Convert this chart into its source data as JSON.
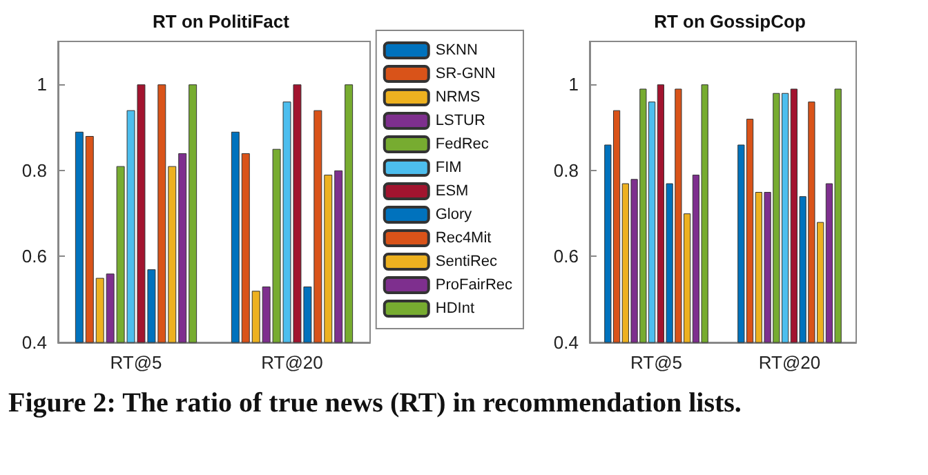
{
  "chart_data": [
    {
      "type": "bar",
      "title": "RT on PolitiFact",
      "categories": [
        "RT@5",
        "RT@20"
      ],
      "ylim": [
        0.4,
        1.1
      ],
      "yticks": [
        0.4,
        0.6,
        0.8,
        {
          "value": 1,
          "label": "1"
        }
      ],
      "grid": false,
      "legend": "right",
      "annotations": [
        "Figure 2: The ratio of true news (RT) in recommendation lists."
      ],
      "series": [
        {
          "name": "SKNN",
          "color": "#0072bd",
          "values": [
            0.89,
            0.89
          ]
        },
        {
          "name": "SR-GNN",
          "color": "#d95319",
          "values": [
            0.88,
            0.84
          ]
        },
        {
          "name": "NRMS",
          "color": "#edb120",
          "values": [
            0.55,
            0.52
          ]
        },
        {
          "name": "LSTUR",
          "color": "#7e2f8e",
          "values": [
            0.56,
            0.53
          ]
        },
        {
          "name": "FedRec",
          "color": "#77ac30",
          "values": [
            0.81,
            0.85
          ]
        },
        {
          "name": "FIM",
          "color": "#4dbeee",
          "values": [
            0.94,
            0.96
          ]
        },
        {
          "name": "ESM",
          "color": "#a2142f",
          "values": [
            1.0,
            1.0
          ]
        },
        {
          "name": "Glory",
          "color": "#0072bd",
          "values": [
            0.57,
            0.53
          ]
        },
        {
          "name": "Rec4Mit",
          "color": "#d95319",
          "values": [
            1.0,
            0.94
          ]
        },
        {
          "name": "SentiRec",
          "color": "#edb120",
          "values": [
            0.81,
            0.79
          ]
        },
        {
          "name": "ProFairRec",
          "color": "#7e2f8e",
          "values": [
            0.84,
            0.8
          ]
        },
        {
          "name": "HDInt",
          "color": "#77ac30",
          "values": [
            1.0,
            1.0
          ]
        }
      ]
    },
    {
      "type": "bar",
      "title": "RT on GossipCop",
      "categories": [
        "RT@5",
        "RT@20"
      ],
      "ylim": [
        0.4,
        1.1
      ],
      "yticks": [
        0.4,
        0.6,
        0.8,
        {
          "value": 1,
          "label": "1"
        }
      ],
      "grid": false,
      "series": [
        {
          "color": "#0072bd",
          "values": [
            0.86,
            0.86
          ]
        },
        {
          "color": "#d95319",
          "values": [
            0.94,
            0.92
          ]
        },
        {
          "color": "#edb120",
          "values": [
            0.77,
            0.75
          ]
        },
        {
          "color": "#7e2f8e",
          "values": [
            0.78,
            0.75
          ]
        },
        {
          "color": "#77ac30",
          "values": [
            0.99,
            0.98
          ]
        },
        {
          "color": "#4dbeee",
          "values": [
            0.96,
            0.98
          ]
        },
        {
          "color": "#a2142f",
          "values": [
            1.0,
            0.99
          ]
        },
        {
          "color": "#0072bd",
          "values": [
            0.77,
            0.74
          ]
        },
        {
          "color": "#d95319",
          "values": [
            0.99,
            0.96
          ]
        },
        {
          "color": "#edb120",
          "values": [
            0.7,
            0.68
          ]
        },
        {
          "color": "#7e2f8e",
          "values": [
            0.79,
            0.77
          ]
        },
        {
          "color": "#77ac30",
          "values": [
            1.0,
            0.99
          ]
        }
      ]
    }
  ]
}
